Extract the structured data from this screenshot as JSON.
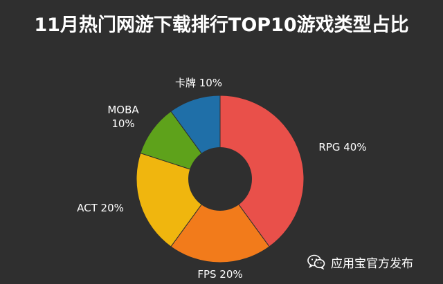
{
  "chart_data": {
    "type": "pie",
    "title": "11月热门网游下载排行TOP10游戏类型占比",
    "donut": true,
    "slices": [
      {
        "label": "RPG",
        "value": 40,
        "value_text": "40%",
        "color": "#e9504a"
      },
      {
        "label": "FPS",
        "value": 20,
        "value_text": "20%",
        "color": "#f27b1b"
      },
      {
        "label": "ACT",
        "value": 20,
        "value_text": "20%",
        "color": "#f0b60e"
      },
      {
        "label": "MOBA",
        "value": 10,
        "value_text": "10%",
        "color": "#5ea21b"
      },
      {
        "label": "卡牌",
        "value": 10,
        "value_text": "10%",
        "color": "#1f6fa8"
      }
    ]
  },
  "footer": {
    "icon": "wechat-icon",
    "text": "应用宝官方发布"
  }
}
